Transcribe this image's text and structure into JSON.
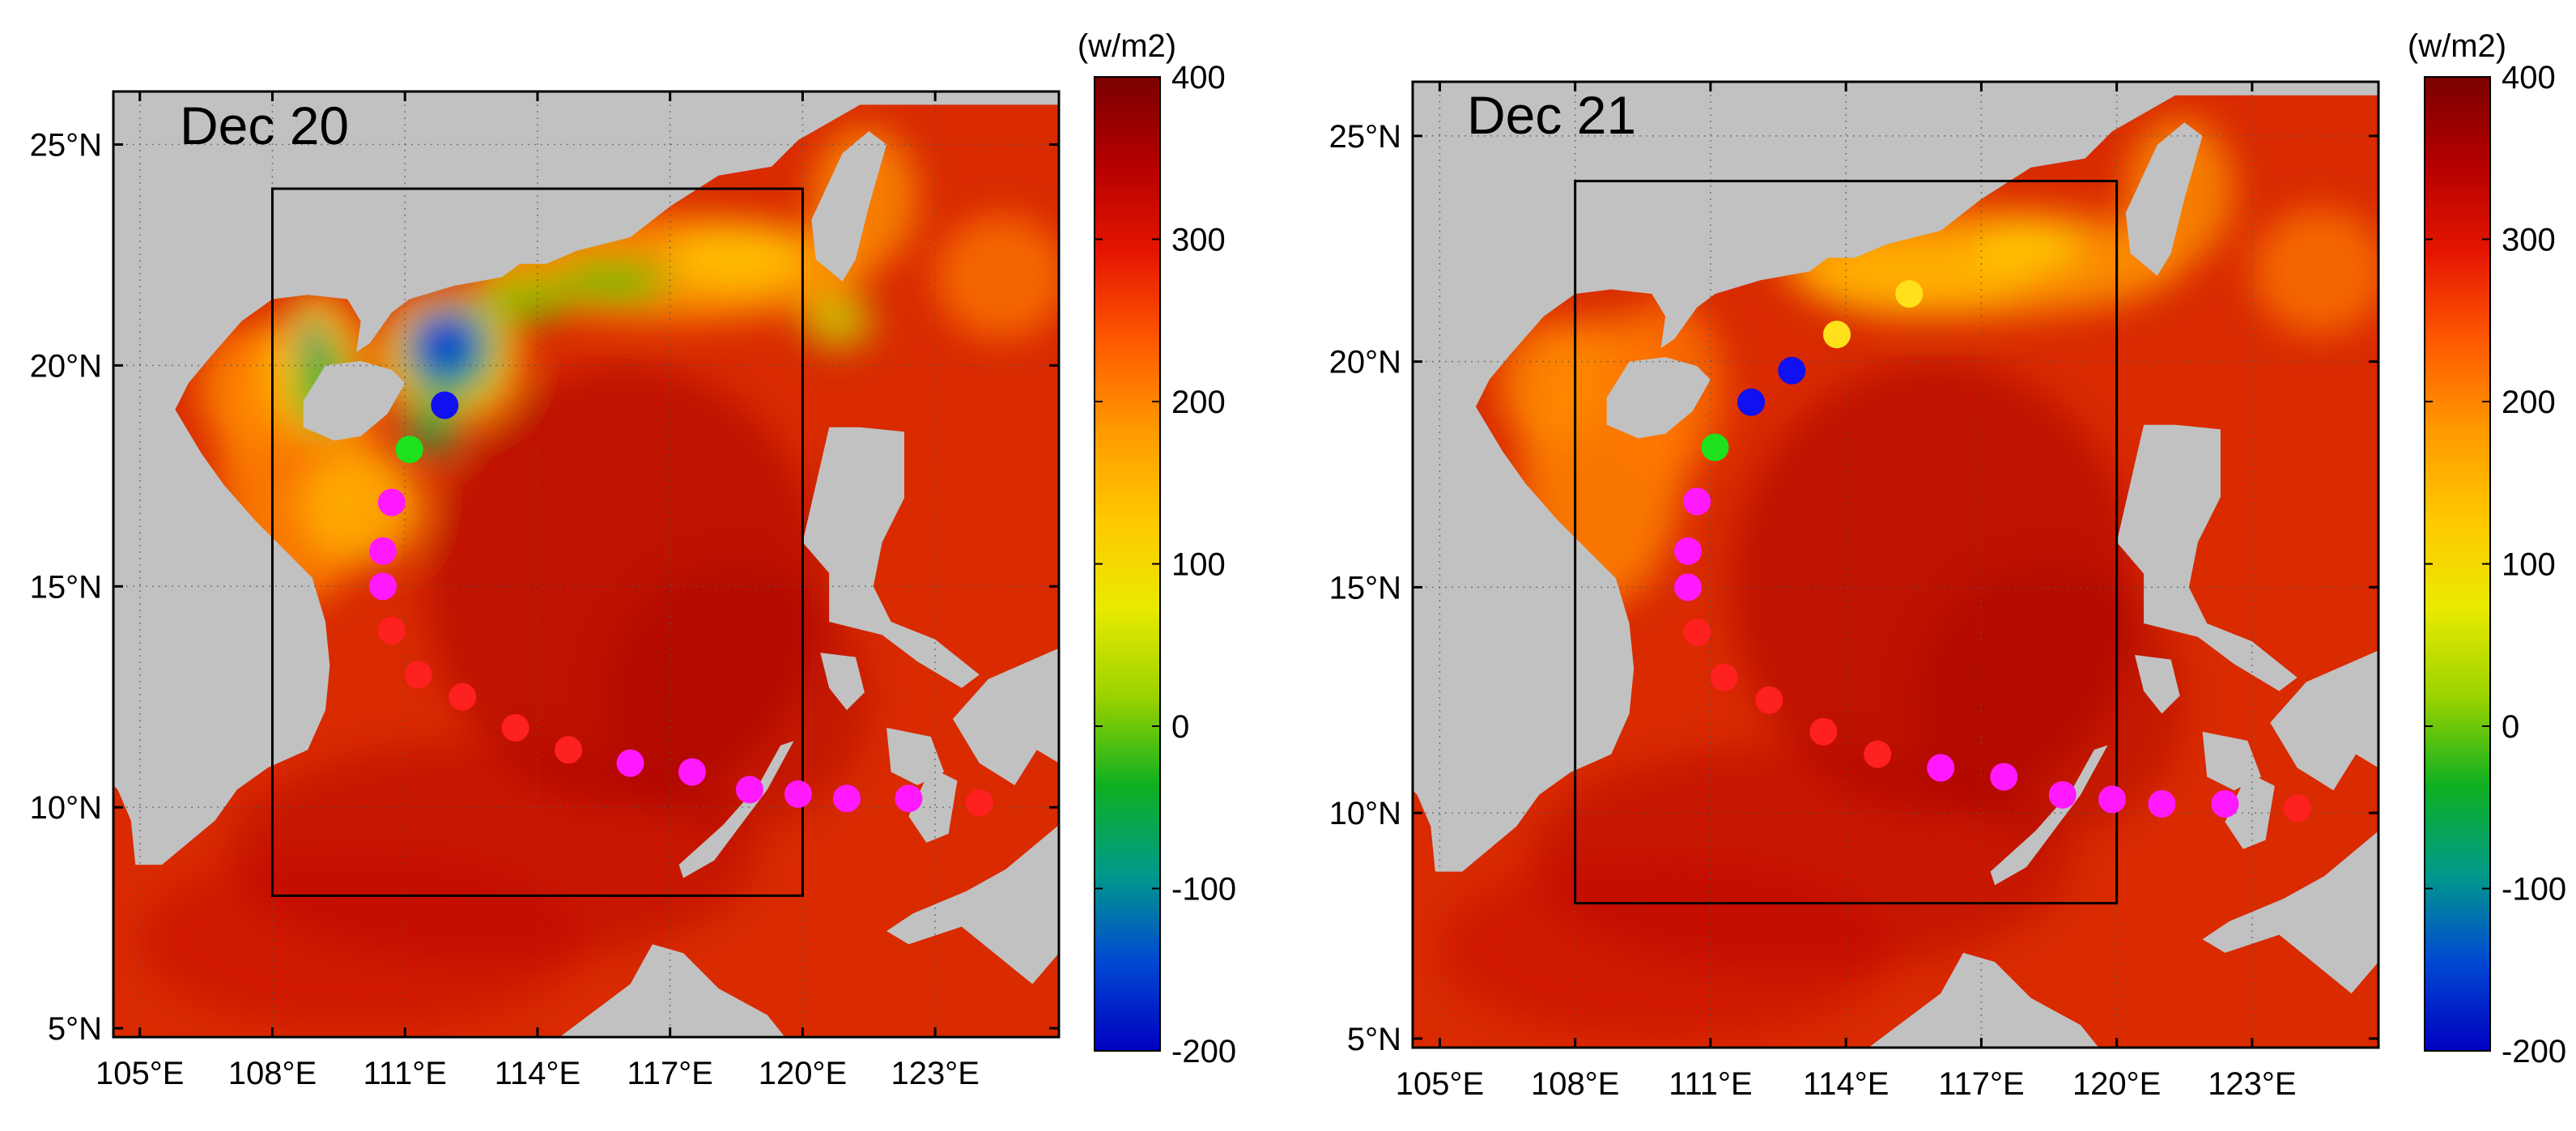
{
  "figure": "Heat flux maps with typhoon track",
  "colorbar": {
    "unit": "(w/m2)",
    "ticks": [
      400,
      300,
      200,
      100,
      0,
      -100,
      -200
    ],
    "stops": [
      "#7a0000",
      "#b50000",
      "#e51600",
      "#ff5a00",
      "#ff9a00",
      "#ffc800",
      "#e9ea00",
      "#9bd200",
      "#0fb020",
      "#009a8a",
      "#0048d2",
      "#0000c0"
    ]
  },
  "axes": {
    "lon_labels": [
      "105°E",
      "108°E",
      "111°E",
      "114°E",
      "117°E",
      "120°E",
      "123°E"
    ],
    "lat_labels": [
      "25°N",
      "20°N",
      "15°N",
      "10°N",
      "5°N"
    ]
  },
  "panels": [
    {
      "label": "Dec 20"
    },
    {
      "label": "Dec 21"
    }
  ],
  "track": [
    {
      "lon": 124.0,
      "lat": 10.1,
      "kind": "red"
    },
    {
      "lon": 122.4,
      "lat": 10.2,
      "kind": "magenta"
    },
    {
      "lon": 121.0,
      "lat": 10.2,
      "kind": "magenta"
    },
    {
      "lon": 119.9,
      "lat": 10.3,
      "kind": "magenta"
    },
    {
      "lon": 118.8,
      "lat": 10.4,
      "kind": "magenta"
    },
    {
      "lon": 117.5,
      "lat": 10.8,
      "kind": "magenta"
    },
    {
      "lon": 116.1,
      "lat": 11.0,
      "kind": "magenta"
    },
    {
      "lon": 114.7,
      "lat": 11.3,
      "kind": "red"
    },
    {
      "lon": 113.5,
      "lat": 11.8,
      "kind": "red"
    },
    {
      "lon": 112.3,
      "lat": 12.5,
      "kind": "red"
    },
    {
      "lon": 111.3,
      "lat": 13.0,
      "kind": "red"
    },
    {
      "lon": 110.7,
      "lat": 14.0,
      "kind": "red"
    },
    {
      "lon": 110.5,
      "lat": 15.0,
      "kind": "magenta"
    },
    {
      "lon": 110.5,
      "lat": 15.8,
      "kind": "magenta"
    },
    {
      "lon": 110.7,
      "lat": 16.9,
      "kind": "magenta"
    }
  ],
  "panel_points": [
    [
      {
        "lon": 111.1,
        "lat": 18.1,
        "kind": "green"
      },
      {
        "lon": 111.9,
        "lat": 19.1,
        "kind": "blue"
      }
    ],
    [
      {
        "lon": 111.1,
        "lat": 18.1,
        "kind": "green"
      },
      {
        "lon": 111.9,
        "lat": 19.1,
        "kind": "blue"
      },
      {
        "lon": 112.8,
        "lat": 19.8,
        "kind": "blue"
      },
      {
        "lon": 113.8,
        "lat": 20.6,
        "kind": "yellow"
      },
      {
        "lon": 115.4,
        "lat": 21.5,
        "kind": "yellow"
      }
    ]
  ],
  "box": {
    "lon_min": 108,
    "lon_max": 120,
    "lat_min": 8,
    "lat_max": 24
  },
  "colors": {
    "land": "#c1c1c1",
    "sea_base": "#d92a00",
    "red": "#ff2020",
    "magenta": "#ff19ff",
    "green": "#1ee11e",
    "blue": "#1010f0",
    "yellow": "#ffe01a"
  }
}
